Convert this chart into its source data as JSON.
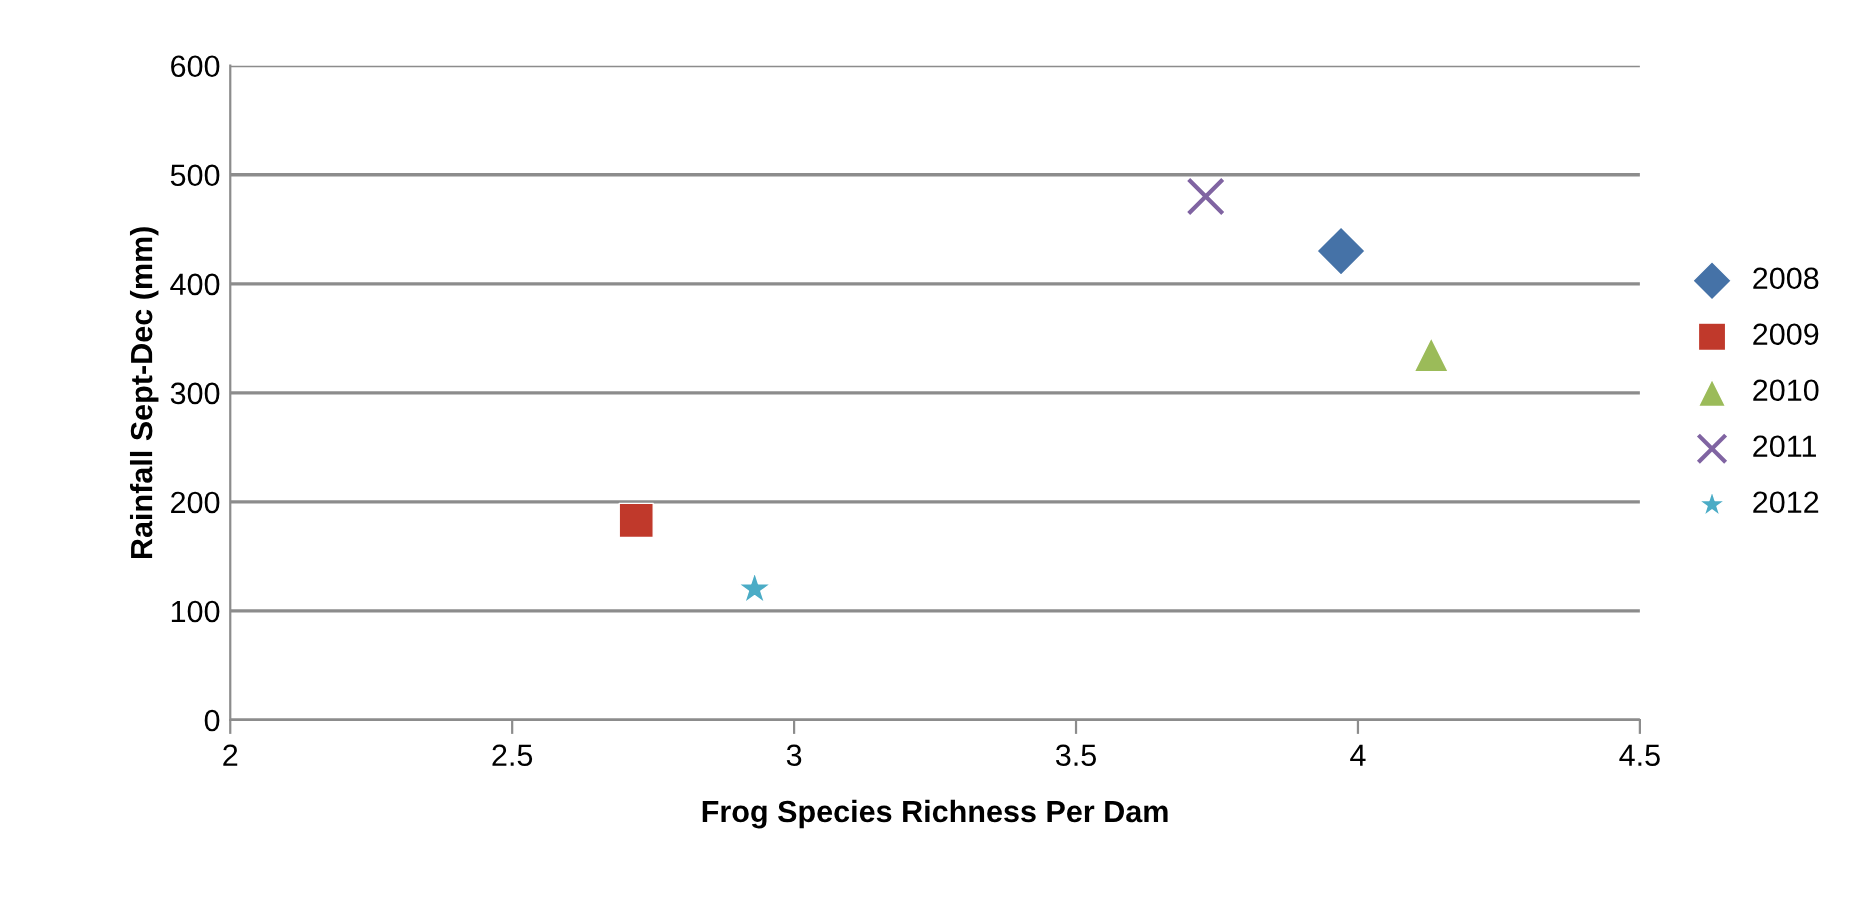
{
  "chart_data": {
    "type": "scatter",
    "xlabel": "Frog Species Richness Per Dam",
    "ylabel": "Rainfall Sept-Dec (mm)",
    "series": [
      {
        "name": "2008",
        "color": "#4572a7",
        "marker": "diamond",
        "x": [
          3.97
        ],
        "values": [
          430
        ]
      },
      {
        "name": "2009",
        "color": "#c0392b",
        "marker": "square",
        "x": [
          2.72
        ],
        "values": [
          183
        ]
      },
      {
        "name": "2010",
        "color": "#9bbb59",
        "marker": "triangle",
        "x": [
          4.13
        ],
        "values": [
          335
        ]
      },
      {
        "name": "2011",
        "color": "#8064a2",
        "marker": "cross",
        "x": [
          3.73
        ],
        "values": [
          480
        ]
      },
      {
        "name": "2012",
        "color": "#4bacc6",
        "marker": "star",
        "x": [
          2.93
        ],
        "values": [
          120
        ]
      }
    ],
    "xlim": [
      2,
      4.5
    ],
    "xticks": [
      2,
      2.5,
      3,
      3.5,
      4,
      4.5
    ],
    "ylim": [
      0,
      600
    ],
    "yticks": [
      0,
      100,
      200,
      300,
      400,
      500,
      600
    ],
    "grid": "y",
    "legend": "right"
  }
}
